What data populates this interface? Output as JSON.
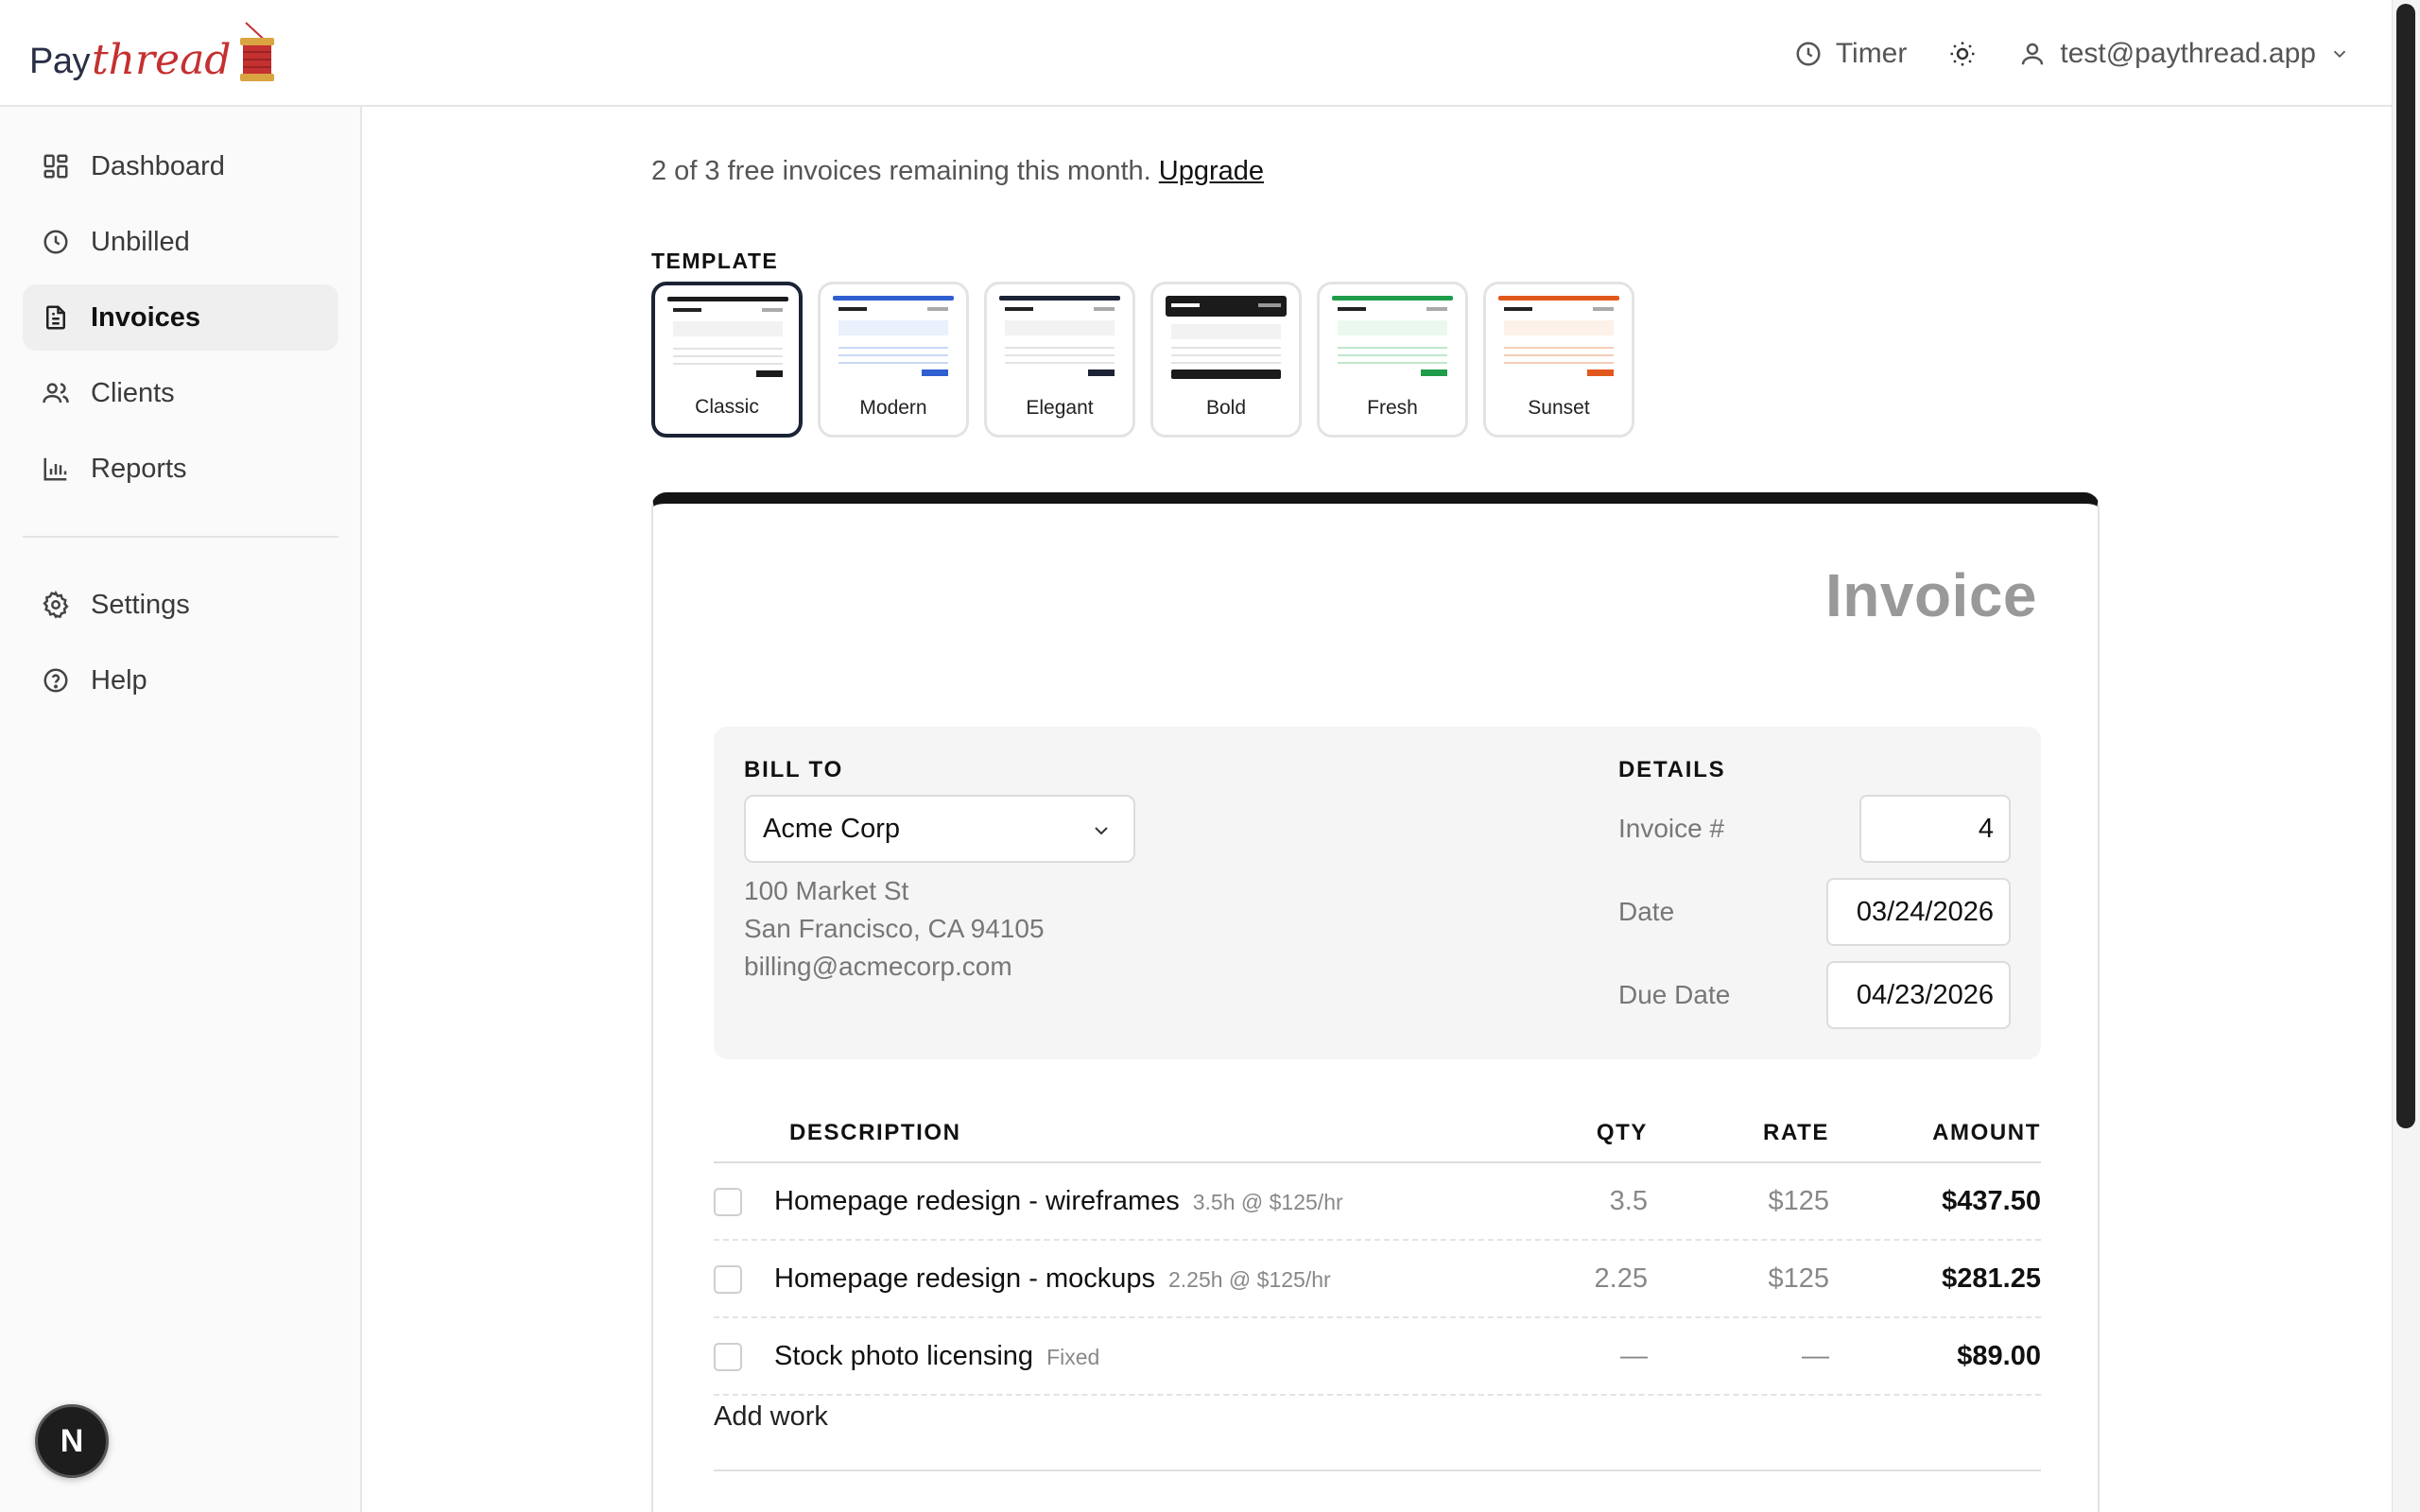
{
  "header": {
    "logo_pay": "Pay",
    "logo_thread": "thread",
    "timer_label": "Timer",
    "user_email": "test@paythread.app"
  },
  "sidebar": {
    "items": [
      {
        "label": "Dashboard",
        "icon": "grid-icon"
      },
      {
        "label": "Unbilled",
        "icon": "clock-icon"
      },
      {
        "label": "Invoices",
        "icon": "document-icon",
        "active": true
      },
      {
        "label": "Clients",
        "icon": "users-icon"
      },
      {
        "label": "Reports",
        "icon": "bar-chart-icon"
      }
    ],
    "secondary": [
      {
        "label": "Settings",
        "icon": "gear-icon"
      },
      {
        "label": "Help",
        "icon": "help-circle-icon"
      }
    ],
    "badge": "N"
  },
  "notice": {
    "text": "2 of 3 free invoices remaining this month.",
    "link": "Upgrade"
  },
  "templates": {
    "label": "TEMPLATE",
    "items": [
      {
        "name": "Classic",
        "accent": "#1b1b1b",
        "selected": true
      },
      {
        "name": "Modern",
        "accent": "#2f5fd0"
      },
      {
        "name": "Elegant",
        "accent": "#1b2335"
      },
      {
        "name": "Bold",
        "accent": "#1b1b1b"
      },
      {
        "name": "Fresh",
        "accent": "#1f9d4a"
      },
      {
        "name": "Sunset",
        "accent": "#e2581c"
      }
    ]
  },
  "invoice": {
    "title": "Invoice",
    "bill_to_label": "BILL TO",
    "client": "Acme Corp",
    "address_line1": "100 Market St",
    "address_line2": "San Francisco, CA 94105",
    "email": "billing@acmecorp.com",
    "details_label": "DETAILS",
    "invoice_no_label": "Invoice #",
    "invoice_no": "4",
    "date_label": "Date",
    "date": "03/24/2026",
    "due_label": "Due Date",
    "due_date": "04/23/2026",
    "columns": {
      "description": "DESCRIPTION",
      "qty": "QTY",
      "rate": "RATE",
      "amount": "AMOUNT"
    },
    "rows": [
      {
        "desc": "Homepage redesign - wireframes",
        "meta": "3.5h @ $125/hr",
        "qty": "3.5",
        "rate": "$125",
        "amount": "$437.50"
      },
      {
        "desc": "Homepage redesign - mockups",
        "meta": "2.25h @ $125/hr",
        "qty": "2.25",
        "rate": "$125",
        "amount": "$281.25"
      },
      {
        "desc": "Stock photo licensing",
        "meta": "Fixed",
        "qty": "—",
        "rate": "—",
        "amount": "$89.00"
      }
    ],
    "add_work": "Add work"
  }
}
